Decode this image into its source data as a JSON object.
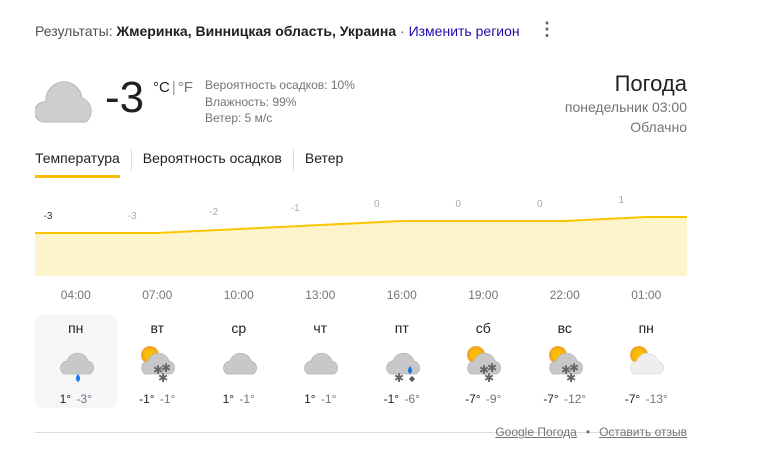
{
  "results": {
    "prefix": "Результаты: ",
    "location": "Жмеринка, Винницкая область, Украина",
    "sep": " · ",
    "change_region": "Изменить регион"
  },
  "current": {
    "icon": "cloudy-icon",
    "temperature": "-3",
    "unit_c": "°C",
    "unit_sep": "|",
    "unit_f": "°F",
    "precipitation": "Вероятность осадков: 10%",
    "humidity": "Влажность: 99%",
    "wind": "Ветер: 5 м/с"
  },
  "header": {
    "title": "Погода",
    "datetime": "понедельник 03:00",
    "condition": "Облачно"
  },
  "tabs": [
    {
      "label": "Температура",
      "active": true
    },
    {
      "label": "Вероятность осадков"
    },
    {
      "label": "Ветер"
    }
  ],
  "colors": {
    "line": "#fbc500",
    "fill": "#fdf4cc",
    "accent": "#fbbc04"
  },
  "chart_data": {
    "type": "area",
    "x": [
      "04:00",
      "07:00",
      "10:00",
      "13:00",
      "16:00",
      "19:00",
      "22:00",
      "01:00"
    ],
    "values": [
      -3,
      -3,
      -2,
      -1,
      0,
      0,
      0,
      1
    ],
    "labels": [
      "-3",
      "-3",
      "-2",
      "-1",
      "0",
      "0",
      "0",
      "1"
    ]
  },
  "days": [
    {
      "name": "пн",
      "icon": "cloud-rain-icon",
      "hi": "1°",
      "lo": "-3°",
      "selected": true
    },
    {
      "name": "вт",
      "icon": "partly-cloudy-snow-icon",
      "hi": "-1°",
      "lo": "-1°"
    },
    {
      "name": "ср",
      "icon": "cloudy-icon",
      "hi": "1°",
      "lo": "-1°"
    },
    {
      "name": "чт",
      "icon": "cloudy-icon",
      "hi": "1°",
      "lo": "-1°"
    },
    {
      "name": "пт",
      "icon": "cloud-rain-snow-icon",
      "hi": "-1°",
      "lo": "-6°"
    },
    {
      "name": "сб",
      "icon": "partly-cloudy-snow-icon",
      "hi": "-7°",
      "lo": "-9°"
    },
    {
      "name": "вс",
      "icon": "partly-cloudy-snow-icon",
      "hi": "-7°",
      "lo": "-12°"
    },
    {
      "name": "пн",
      "icon": "partly-cloudy-icon",
      "hi": "-7°",
      "lo": "-13°"
    }
  ],
  "footer": {
    "source": "Google Погода",
    "dot": "•",
    "feedback": "Оставить отзыв"
  }
}
